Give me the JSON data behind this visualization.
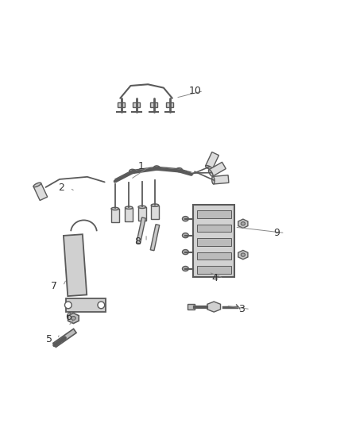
{
  "background_color": "#ffffff",
  "line_color": "#5a5a5a",
  "line_width": 1.0,
  "label_color": "#333333",
  "label_fontsize": 9,
  "figsize": [
    4.38,
    5.33
  ],
  "dpi": 100
}
